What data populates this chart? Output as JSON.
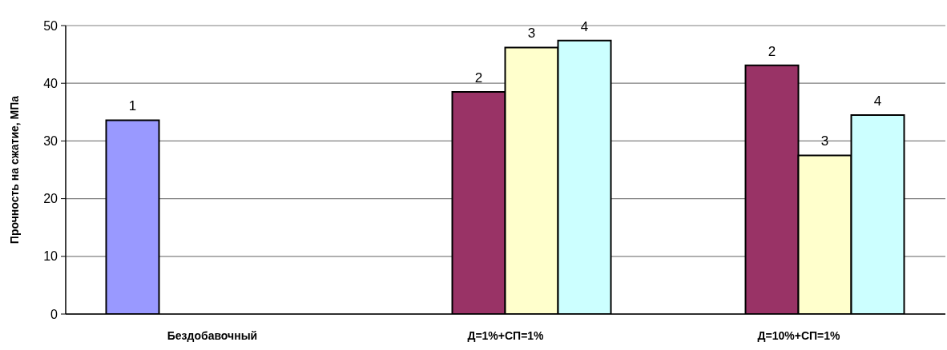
{
  "chart_data": {
    "type": "bar",
    "ylabel": "Прочность на сжатие, МПа",
    "categories": [
      "Бездобавочный",
      "Д=1%+СП=1%",
      "Д=10%+СП=1%"
    ],
    "series": [
      {
        "name": "1",
        "color": "#9999ff",
        "values": [
          33.6,
          null,
          null
        ]
      },
      {
        "name": "2",
        "color": "#993366",
        "values": [
          null,
          38.5,
          43.1
        ]
      },
      {
        "name": "3",
        "color": "#ffffcc",
        "values": [
          null,
          46.2,
          27.5
        ]
      },
      {
        "name": "4",
        "color": "#ccffff",
        "values": [
          null,
          47.4,
          34.5
        ]
      }
    ],
    "ylim": [
      0,
      50
    ],
    "yticks": [
      0,
      10,
      20,
      30,
      40,
      50
    ],
    "grid": "y",
    "legend": false
  }
}
